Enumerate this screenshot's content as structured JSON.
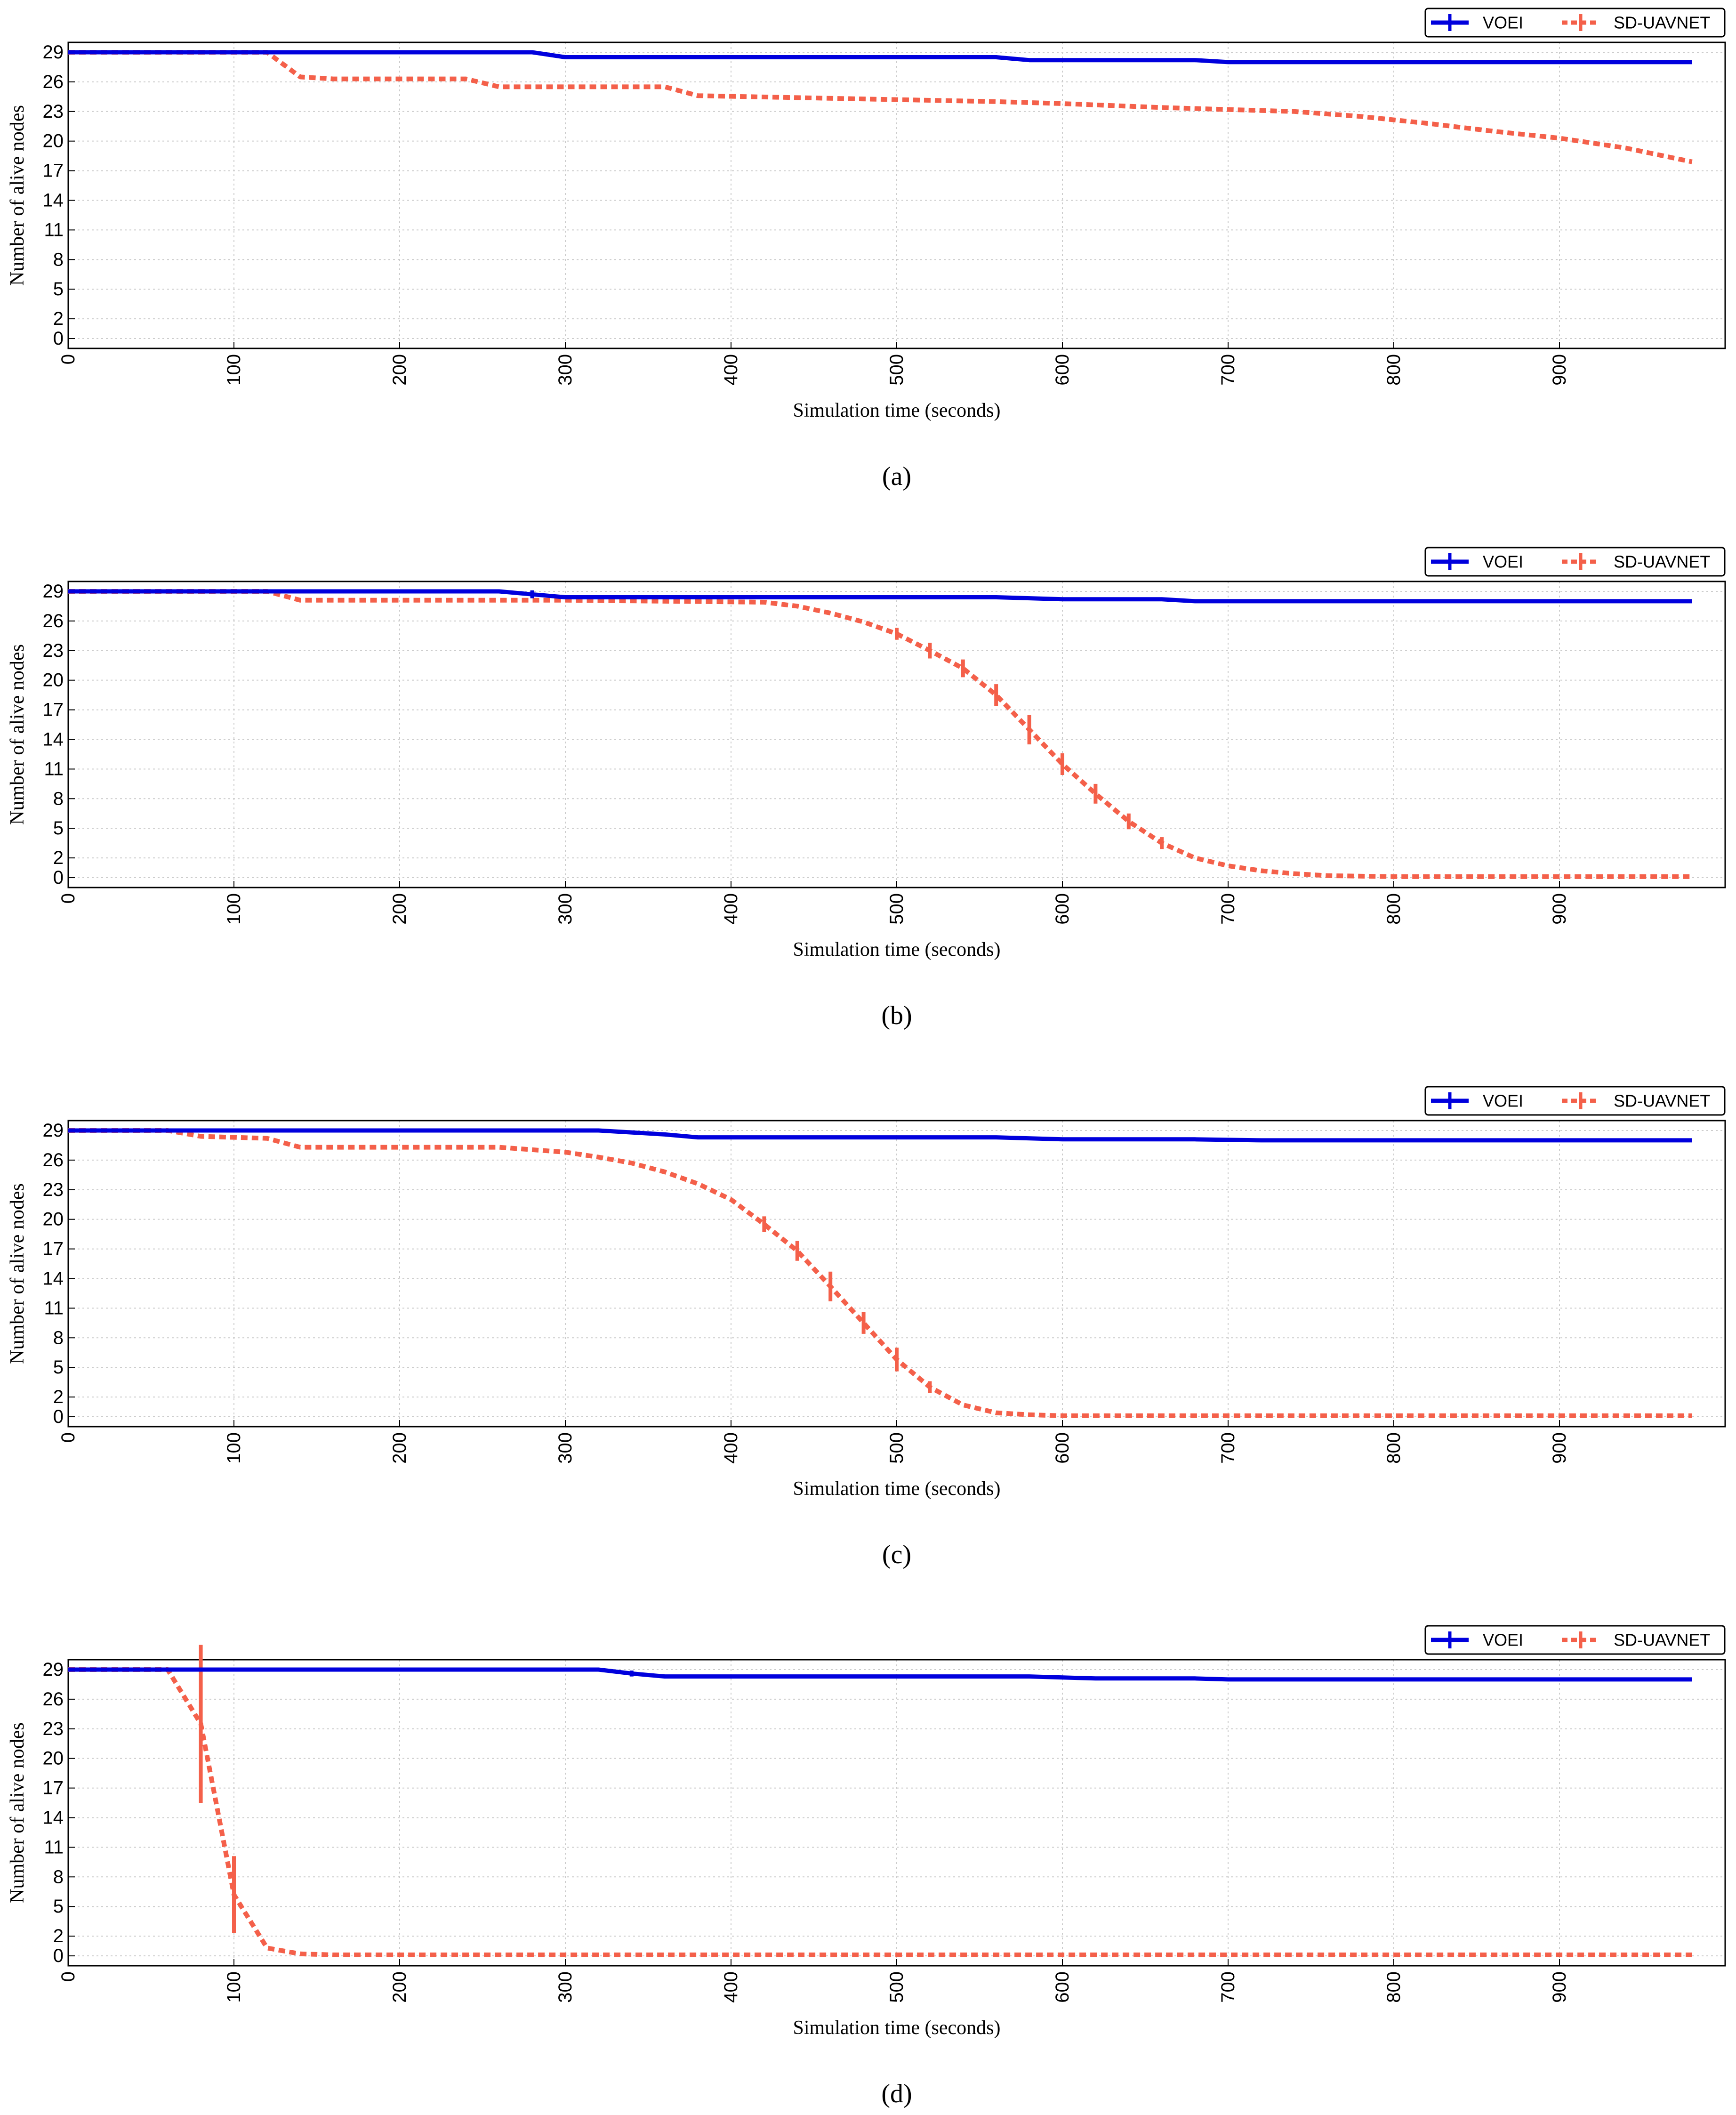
{
  "colors": {
    "voei": "#0000dd",
    "sd": "#f4604a",
    "grid": "#cccccc",
    "axis": "#000000"
  },
  "legend": {
    "position": "top-right",
    "entries": [
      "VOEI",
      "SD-UAVNET"
    ]
  },
  "chart_data": [
    {
      "type": "line",
      "caption": "(a)",
      "xlabel": "Simulation time (seconds)",
      "ylabel": "Number of alive nodes",
      "xlim": [
        0,
        1000
      ],
      "ylim": [
        -1,
        30
      ],
      "xticks": [
        0,
        100,
        200,
        300,
        400,
        500,
        600,
        700,
        800,
        900
      ],
      "yticks": [
        0,
        2,
        5,
        8,
        11,
        14,
        17,
        20,
        23,
        26,
        29
      ],
      "grid": true,
      "series": [
        {
          "name": "VOEI",
          "style": "solid",
          "points": [
            [
              0,
              29
            ],
            [
              280,
              29
            ],
            [
              300,
              28.5
            ],
            [
              560,
              28.5
            ],
            [
              580,
              28.2
            ],
            [
              680,
              28.2
            ],
            [
              700,
              28
            ],
            [
              980,
              28
            ]
          ],
          "errors": []
        },
        {
          "name": "SD-UAVNET",
          "style": "dashed",
          "points": [
            [
              0,
              29
            ],
            [
              120,
              29
            ],
            [
              140,
              26.5
            ],
            [
              160,
              26.3
            ],
            [
              240,
              26.3
            ],
            [
              260,
              25.5
            ],
            [
              360,
              25.5
            ],
            [
              380,
              24.6
            ],
            [
              440,
              24.4
            ],
            [
              500,
              24.2
            ],
            [
              560,
              24
            ],
            [
              600,
              23.8
            ],
            [
              660,
              23.4
            ],
            [
              700,
              23.2
            ],
            [
              740,
              23
            ],
            [
              780,
              22.5
            ],
            [
              820,
              21.8
            ],
            [
              860,
              21
            ],
            [
              900,
              20.3
            ],
            [
              940,
              19.3
            ],
            [
              980,
              17.9
            ]
          ],
          "errors": []
        }
      ]
    },
    {
      "type": "line",
      "caption": "(b)",
      "xlabel": "Simulation time (seconds)",
      "ylabel": "Number of alive nodes",
      "xlim": [
        0,
        1000
      ],
      "ylim": [
        -1,
        30
      ],
      "xticks": [
        0,
        100,
        200,
        300,
        400,
        500,
        600,
        700,
        800,
        900
      ],
      "yticks": [
        0,
        2,
        5,
        8,
        11,
        14,
        17,
        20,
        23,
        26,
        29
      ],
      "grid": true,
      "series": [
        {
          "name": "VOEI",
          "style": "solid",
          "points": [
            [
              0,
              29
            ],
            [
              260,
              29
            ],
            [
              280,
              28.7
            ],
            [
              300,
              28.4
            ],
            [
              560,
              28.4
            ],
            [
              600,
              28.2
            ],
            [
              660,
              28.2
            ],
            [
              680,
              28
            ],
            [
              980,
              28
            ]
          ],
          "errors": [
            [
              280,
              0.4
            ]
          ]
        },
        {
          "name": "SD-UAVNET",
          "style": "dashed",
          "points": [
            [
              0,
              29
            ],
            [
              120,
              29
            ],
            [
              140,
              28.1
            ],
            [
              300,
              28.1
            ],
            [
              420,
              27.9
            ],
            [
              440,
              27.5
            ],
            [
              460,
              26.8
            ],
            [
              480,
              25.9
            ],
            [
              500,
              24.7
            ],
            [
              520,
              23
            ],
            [
              540,
              21.2
            ],
            [
              560,
              18.5
            ],
            [
              580,
              15
            ],
            [
              600,
              11.5
            ],
            [
              620,
              8.5
            ],
            [
              640,
              5.7
            ],
            [
              660,
              3.5
            ],
            [
              680,
              2
            ],
            [
              700,
              1.2
            ],
            [
              720,
              0.7
            ],
            [
              740,
              0.4
            ],
            [
              760,
              0.2
            ],
            [
              800,
              0.1
            ],
            [
              980,
              0.1
            ]
          ],
          "errors": [
            [
              500,
              0.6
            ],
            [
              520,
              0.8
            ],
            [
              540,
              0.9
            ],
            [
              560,
              1.1
            ],
            [
              580,
              1.5
            ],
            [
              600,
              1.1
            ],
            [
              620,
              1
            ],
            [
              640,
              0.8
            ],
            [
              660,
              0.6
            ]
          ]
        }
      ]
    },
    {
      "type": "line",
      "caption": "(c)",
      "xlabel": "Simulation time (seconds)",
      "ylabel": "Number of alive nodes",
      "xlim": [
        0,
        1000
      ],
      "ylim": [
        -1,
        30
      ],
      "xticks": [
        0,
        100,
        200,
        300,
        400,
        500,
        600,
        700,
        800,
        900
      ],
      "yticks": [
        0,
        2,
        5,
        8,
        11,
        14,
        17,
        20,
        23,
        26,
        29
      ],
      "grid": true,
      "series": [
        {
          "name": "VOEI",
          "style": "solid",
          "points": [
            [
              0,
              29
            ],
            [
              320,
              29
            ],
            [
              360,
              28.6
            ],
            [
              380,
              28.3
            ],
            [
              560,
              28.3
            ],
            [
              600,
              28.1
            ],
            [
              680,
              28.1
            ],
            [
              720,
              28
            ],
            [
              980,
              28
            ]
          ],
          "errors": []
        },
        {
          "name": "SD-UAVNET",
          "style": "dashed",
          "points": [
            [
              0,
              29
            ],
            [
              60,
              29
            ],
            [
              80,
              28.4
            ],
            [
              120,
              28.2
            ],
            [
              140,
              27.3
            ],
            [
              260,
              27.3
            ],
            [
              300,
              26.8
            ],
            [
              320,
              26.3
            ],
            [
              340,
              25.7
            ],
            [
              360,
              24.8
            ],
            [
              380,
              23.6
            ],
            [
              400,
              22
            ],
            [
              420,
              19.5
            ],
            [
              440,
              16.8
            ],
            [
              460,
              13.2
            ],
            [
              480,
              9.5
            ],
            [
              500,
              5.8
            ],
            [
              520,
              3
            ],
            [
              540,
              1.2
            ],
            [
              560,
              0.4
            ],
            [
              580,
              0.2
            ],
            [
              600,
              0.1
            ],
            [
              980,
              0.1
            ]
          ],
          "errors": [
            [
              420,
              0.8
            ],
            [
              440,
              1
            ],
            [
              460,
              1.5
            ],
            [
              480,
              1.1
            ],
            [
              500,
              1.2
            ],
            [
              520,
              0.6
            ]
          ]
        }
      ]
    },
    {
      "type": "line",
      "caption": "(d)",
      "xlabel": "Simulation time (seconds)",
      "ylabel": "Number of alive nodes",
      "xlim": [
        0,
        1000
      ],
      "ylim": [
        -1,
        30
      ],
      "xticks": [
        0,
        100,
        200,
        300,
        400,
        500,
        600,
        700,
        800,
        900
      ],
      "yticks": [
        0,
        2,
        5,
        8,
        11,
        14,
        17,
        20,
        23,
        26,
        29
      ],
      "grid": true,
      "series": [
        {
          "name": "VOEI",
          "style": "solid",
          "points": [
            [
              0,
              29
            ],
            [
              320,
              29
            ],
            [
              340,
              28.6
            ],
            [
              360,
              28.3
            ],
            [
              580,
              28.3
            ],
            [
              620,
              28.1
            ],
            [
              680,
              28.1
            ],
            [
              700,
              28
            ],
            [
              980,
              28
            ]
          ],
          "errors": [
            [
              340,
              0.3
            ]
          ]
        },
        {
          "name": "SD-UAVNET",
          "style": "dashed",
          "points": [
            [
              0,
              29
            ],
            [
              60,
              29
            ],
            [
              80,
              23.5
            ],
            [
              100,
              6.2
            ],
            [
              120,
              0.8
            ],
            [
              140,
              0.2
            ],
            [
              160,
              0.1
            ],
            [
              980,
              0.1
            ]
          ],
          "errors": [
            [
              80,
              8
            ],
            [
              100,
              3.9
            ]
          ]
        }
      ]
    }
  ]
}
